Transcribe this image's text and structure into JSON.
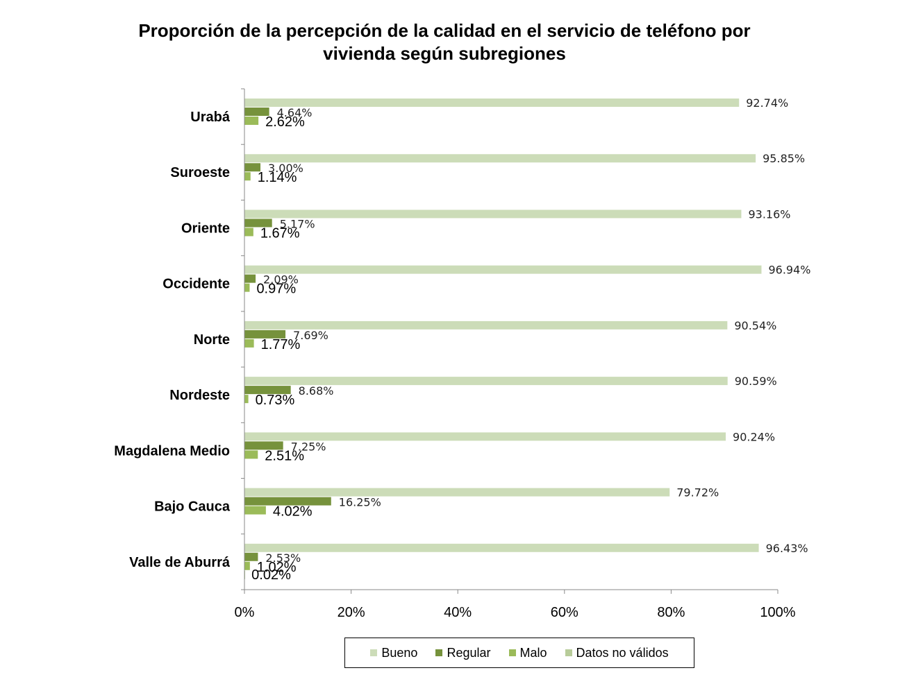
{
  "chart_data": {
    "type": "bar",
    "orientation": "horizontal",
    "title": "Proporción de la percepción de la calidad en el servicio de teléfono por vivienda según subregiones",
    "title_lines": [
      "Proporción de la percepción de la calidad en el servicio de teléfono por",
      "vivienda según subregiones"
    ],
    "categories": [
      "Urabá",
      "Suroeste",
      "Oriente",
      "Occidente",
      "Norte",
      "Nordeste",
      "Magdalena Medio",
      "Bajo Cauca",
      "Valle de Aburrá"
    ],
    "series": [
      {
        "name": "Bueno",
        "color": "#ccdcb8",
        "values": [
          92.74,
          95.85,
          93.16,
          96.94,
          90.54,
          90.59,
          90.24,
          79.72,
          96.43
        ],
        "labels": [
          "92.74%",
          "95.85%",
          "93.16%",
          "96.94%",
          "90.54%",
          "90.59%",
          "90.24%",
          "79.72%",
          "96.43%"
        ]
      },
      {
        "name": "Regular",
        "color": "#76923c",
        "values": [
          4.64,
          3.0,
          5.17,
          2.09,
          7.69,
          8.68,
          7.25,
          16.25,
          2.53
        ],
        "labels": [
          "4.64%",
          "3.00%",
          "5.17%",
          "2.09%",
          "7.69%",
          "8.68%",
          "7.25%",
          "16.25%",
          "2.53%"
        ]
      },
      {
        "name": "Malo",
        "color": "#9bbb59",
        "values": [
          2.62,
          1.14,
          1.67,
          0.97,
          1.77,
          0.73,
          2.51,
          4.02,
          1.02
        ],
        "labels": [
          "2.62%",
          "1.14%",
          "1.67%",
          "0.97%",
          "1.77%",
          "0.73%",
          "2.51%",
          "4.02%",
          "1.02%"
        ]
      },
      {
        "name": "Datos no válidos",
        "color": "#b8cc9a",
        "values": [
          null,
          null,
          null,
          null,
          null,
          null,
          null,
          null,
          0.02
        ],
        "labels": [
          null,
          null,
          null,
          null,
          null,
          null,
          null,
          null,
          "0.02%"
        ]
      }
    ],
    "xlim": [
      0,
      100
    ],
    "xticks": [
      "0%",
      "20%",
      "40%",
      "60%",
      "80%",
      "100%"
    ],
    "xlabel": "",
    "ylabel": "",
    "grid": false,
    "legend_position": "bottom"
  }
}
